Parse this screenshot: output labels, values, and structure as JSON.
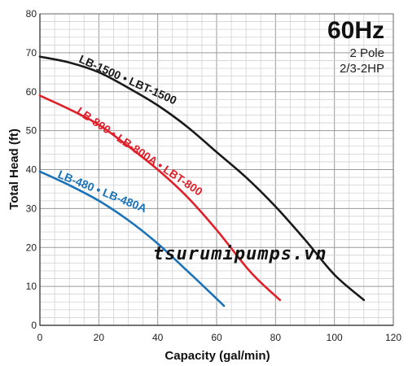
{
  "chart_data": {
    "type": "line",
    "xlabel": "Capacity (gal/min)",
    "ylabel": "Total Head (ft)",
    "xlim": [
      0,
      120
    ],
    "ylim": [
      0,
      80
    ],
    "x_ticks": [
      "0",
      "20",
      "40",
      "60",
      "80",
      "100",
      "120"
    ],
    "y_ticks": [
      "0",
      "10",
      "20",
      "30",
      "40",
      "50",
      "60",
      "70",
      "80"
    ],
    "grid": true,
    "info_box": {
      "title": "60Hz",
      "line1": "2 Pole",
      "line2": "2/3-2HP"
    },
    "series": [
      {
        "name": "LB-1500 • LBT-1500",
        "color": "#1a1a1a",
        "x": [
          0,
          10,
          20,
          30,
          40,
          50,
          60,
          70,
          80,
          90,
          100,
          110
        ],
        "y": [
          69,
          67.5,
          65,
          61,
          56.5,
          51,
          44.5,
          38,
          30.5,
          22,
          13,
          6.5
        ]
      },
      {
        "name": "LB-800 • LB-800A • LBT-800",
        "color": "#e0202a",
        "x": [
          0,
          10,
          20,
          30,
          40,
          50,
          60,
          70,
          75,
          81.5
        ],
        "y": [
          59,
          55.5,
          51.5,
          46,
          40,
          33,
          24.5,
          15,
          11,
          6.5
        ]
      },
      {
        "name": "LB-480 • LB-480A",
        "color": "#1a73b8",
        "x": [
          0,
          10,
          20,
          30,
          40,
          50,
          57,
          62.5
        ],
        "y": [
          39.5,
          36,
          32,
          27,
          21,
          14,
          9,
          5
        ]
      }
    ],
    "watermark": "tsurumipumps.vn"
  }
}
